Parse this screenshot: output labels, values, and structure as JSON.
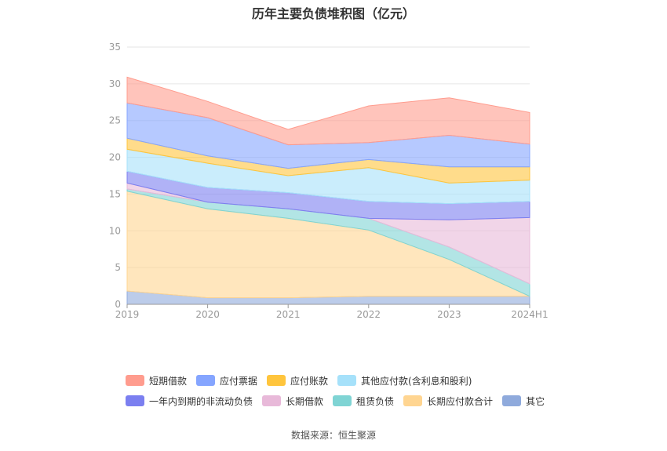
{
  "title": "历年主要负债堆积图（亿元）",
  "source": "数据来源：恒生聚源",
  "chart_data": {
    "type": "area",
    "stacked": true,
    "title": "历年主要负债堆积图（亿元）",
    "categories": [
      "2019",
      "2020",
      "2021",
      "2022",
      "2023",
      "2024H1"
    ],
    "ylim": [
      0,
      35
    ],
    "yticks": [
      0,
      5,
      10,
      15,
      20,
      25,
      30,
      35
    ],
    "grid": true,
    "legend_position": "bottom",
    "series": [
      {
        "name": "其它",
        "color": "#8faadc",
        "values": [
          1.8,
          0.9,
          0.9,
          1.1,
          1.1,
          1.1
        ]
      },
      {
        "name": "长期应付款合计",
        "color": "#ffd591",
        "values": [
          13.6,
          12.1,
          10.8,
          9.0,
          5.0,
          0.0
        ]
      },
      {
        "name": "租赁负债",
        "color": "#7fd4d4",
        "values": [
          0.3,
          0.9,
          1.3,
          1.6,
          1.7,
          1.7
        ]
      },
      {
        "name": "长期借款",
        "color": "#e8b9d9",
        "values": [
          0.8,
          0.0,
          0.0,
          0.0,
          3.7,
          9.0
        ]
      },
      {
        "name": "一年内到期的非流动负债",
        "color": "#7b7ff0",
        "values": [
          1.6,
          2.0,
          2.2,
          2.3,
          2.2,
          2.2
        ]
      },
      {
        "name": "其他应付款(含利息和股利)",
        "color": "#a6e1fa",
        "values": [
          3.0,
          3.3,
          2.3,
          4.6,
          2.8,
          2.9
        ]
      },
      {
        "name": "应付账款",
        "color": "#ffc53d",
        "values": [
          1.5,
          1.0,
          1.0,
          1.1,
          2.2,
          1.8
        ]
      },
      {
        "name": "应付票据",
        "color": "#85a5ff",
        "values": [
          4.8,
          5.2,
          3.2,
          2.3,
          4.3,
          3.1
        ]
      },
      {
        "name": "短期借款",
        "color": "#ff9c8e",
        "values": [
          3.5,
          2.2,
          2.1,
          5.0,
          5.1,
          4.3
        ]
      }
    ]
  },
  "legend": {
    "row1": [
      {
        "label": "短期借款",
        "color": "#ff9c8e"
      },
      {
        "label": "应付票据",
        "color": "#85a5ff"
      },
      {
        "label": "应付账款",
        "color": "#ffc53d"
      },
      {
        "label": "其他应付款(含利息和股利)",
        "color": "#a6e1fa"
      }
    ],
    "row2": [
      {
        "label": "一年内到期的非流动负债",
        "color": "#7b7ff0"
      },
      {
        "label": "长期借款",
        "color": "#e8b9d9"
      },
      {
        "label": "租赁负债",
        "color": "#7fd4d4"
      },
      {
        "label": "长期应付款合计",
        "color": "#ffd591"
      },
      {
        "label": "其它",
        "color": "#8faadc"
      }
    ]
  }
}
